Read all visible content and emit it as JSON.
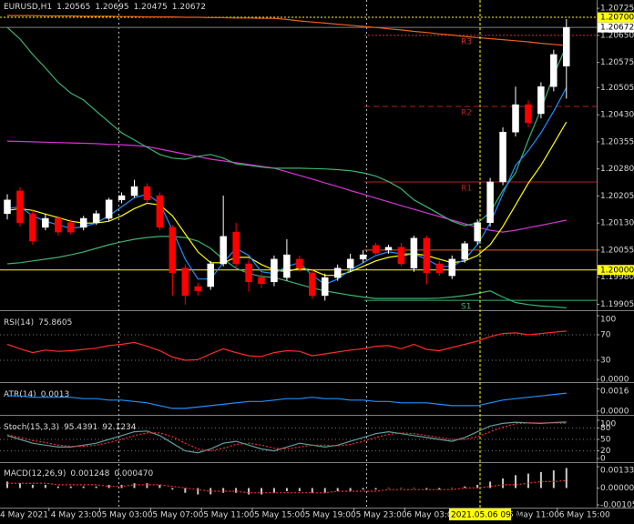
{
  "chart_data": [
    {
      "type": "candlestick",
      "title": "EURUSD,H1",
      "categories": [
        "4 May 2021",
        null,
        null,
        null,
        "4 May 23:00",
        null,
        null,
        null,
        "5 May 03:00",
        null,
        null,
        null,
        "5 May 07:00",
        null,
        null,
        null,
        "5 May 11:00",
        null,
        null,
        null,
        "5 May 15:00",
        null,
        null,
        null,
        "5 May 19:00",
        null,
        null,
        null,
        "5 May 23:00",
        null,
        null,
        null,
        "6 May 03:00",
        null,
        null,
        null,
        null,
        null,
        null,
        null,
        "6 May 11:00",
        null,
        null,
        null,
        "6 May 15:00"
      ],
      "open": [
        1.20156,
        1.20219,
        1.20156,
        1.20118,
        1.20143,
        1.20131,
        1.20118,
        1.20131,
        1.20143,
        1.20194,
        1.20206,
        1.20231,
        1.20206,
        1.20118,
        1.20005,
        1.19954,
        1.19954,
        1.20017,
        1.20105,
        1.20017,
        1.19979,
        1.19967,
        1.19979,
        1.2003,
        1.19992,
        1.19929,
        1.19979,
        1.20005,
        1.2003,
        1.20068,
        1.20055,
        1.20063,
        1.20005,
        1.20088,
        1.20017,
        1.19984,
        1.2003,
        1.2008,
        1.20131,
        1.20244,
        1.20382,
        1.20458,
        1.20433,
        1.20508,
        1.20565
      ],
      "high": [
        1.2021,
        1.2023,
        1.20165,
        1.20155,
        1.2015,
        1.2014,
        1.2015,
        1.20165,
        1.202,
        1.20215,
        1.2025,
        1.2024,
        1.20215,
        1.20125,
        1.20015,
        1.19965,
        1.20025,
        1.20206,
        1.2013,
        1.2003,
        1.1999,
        1.2004,
        1.20085,
        1.2004,
        1.2,
        1.1999,
        1.20015,
        1.20045,
        1.20055,
        1.20075,
        1.2007,
        1.20075,
        1.20095,
        1.20095,
        1.20025,
        1.2004,
        1.2008,
        1.2014,
        1.20255,
        1.20395,
        1.20508,
        1.2047,
        1.2052,
        1.2061,
        1.20695
      ],
      "low": [
        1.2014,
        1.2012,
        1.2007,
        1.2011,
        1.20095,
        1.20098,
        1.2011,
        1.20125,
        1.20135,
        1.20185,
        1.202,
        1.20185,
        1.2011,
        1.19929,
        1.19904,
        1.19929,
        1.19945,
        1.2001,
        1.20005,
        1.1994,
        1.1995,
        1.19955,
        1.1997,
        1.19995,
        1.1992,
        1.19915,
        1.1997,
        1.19995,
        1.2002,
        1.2004,
        1.20045,
        1.2001,
        1.19995,
        1.1996,
        1.19984,
        1.19975,
        1.2002,
        1.2007,
        1.2012,
        1.20235,
        1.2037,
        1.20395,
        1.2042,
        1.20495,
        1.20475
      ],
      "close": [
        1.20194,
        1.20131,
        1.2008,
        1.20143,
        1.20105,
        1.20105,
        1.20143,
        1.20156,
        1.20194,
        1.20206,
        1.20231,
        1.20194,
        1.20118,
        1.19992,
        1.19929,
        1.19942,
        1.20017,
        1.20093,
        1.20017,
        1.19967,
        1.19962,
        1.2003,
        1.20042,
        1.20005,
        1.19929,
        1.19979,
        1.20005,
        1.2003,
        1.20042,
        1.20047,
        1.20063,
        1.20017,
        1.20088,
        1.19992,
        1.19992,
        1.2003,
        1.20073,
        1.20131,
        1.20244,
        1.20382,
        1.20458,
        1.20408,
        1.20508,
        1.20597,
        1.20672
      ],
      "up_color": "#ffffff",
      "down_color": "#ff0000",
      "series": [
        {
          "color": "#e8601c",
          "values": [
            1.20705,
            1.20705,
            1.20705,
            1.20704,
            1.20704,
            1.20704,
            1.20703,
            1.20703,
            1.20703,
            1.20702,
            1.20702,
            1.20701,
            1.20701,
            1.20701,
            1.207,
            1.207,
            1.20699,
            1.20699,
            1.20698,
            1.20698,
            1.20697,
            1.20697,
            1.20694,
            1.2069,
            1.20687,
            1.20684,
            1.20681,
            1.20678,
            1.20675,
            1.20672,
            1.20668,
            1.20665,
            1.20661,
            1.20658,
            1.20654,
            1.20651,
            1.20647,
            1.20644,
            1.20641,
            1.20638,
            1.20635,
            1.20632,
            1.20628,
            1.20625,
            1.20622
          ]
        },
        {
          "color": "#d633d6",
          "values": [
            1.20357,
            1.20356,
            1.20355,
            1.20354,
            1.20353,
            1.20352,
            1.20351,
            1.2035,
            1.20348,
            1.20347,
            1.20345,
            1.20342,
            1.20335,
            1.20328,
            1.20321,
            1.20314,
            1.20307,
            1.20302,
            1.20297,
            1.20292,
            1.20287,
            1.20282,
            1.20272,
            1.20262,
            1.20252,
            1.20241,
            1.20231,
            1.2022,
            1.2021,
            1.20199,
            1.20189,
            1.20178,
            1.20168,
            1.20158,
            1.20148,
            1.20138,
            1.20128,
            1.20118,
            1.2011,
            1.20105,
            1.2011,
            1.20117,
            1.20124,
            1.20131,
            1.20138
          ]
        },
        {
          "color": "#3cb371",
          "values": [
            1.20672,
            1.2064,
            1.20597,
            1.2056,
            1.2052,
            1.2049,
            1.20471,
            1.2044,
            1.2041,
            1.2038,
            1.2036,
            1.2034,
            1.2032,
            1.2031,
            1.20307,
            1.20315,
            1.2032,
            1.2031,
            1.20294,
            1.2029,
            1.20285,
            1.20282,
            1.20282,
            1.20282,
            1.20281,
            1.2028,
            1.20278,
            1.20275,
            1.20269,
            1.2026,
            1.20245,
            1.20225,
            1.20194,
            1.20175,
            1.20155,
            1.20135,
            1.20123,
            1.2013,
            1.2016,
            1.2022,
            1.20269,
            1.2036,
            1.20445,
            1.2054,
            1.20622
          ]
        },
        {
          "color": "#3cb371",
          "values": [
            1.20017,
            1.2002,
            1.20025,
            1.2003,
            1.20035,
            1.20042,
            1.2005,
            1.2006,
            1.2007,
            1.20078,
            1.20085,
            1.2009,
            1.20093,
            1.20093,
            1.2009,
            1.2008,
            1.2006,
            1.2003,
            1.20005,
            1.1999,
            1.19982,
            1.19979,
            1.1997,
            1.1996,
            1.1995,
            1.19942,
            1.19936,
            1.1993,
            1.19925,
            1.19921,
            1.19921,
            1.19921,
            1.19921,
            1.19921,
            1.19922,
            1.19925,
            1.19929,
            1.19935,
            1.19942,
            1.19925,
            1.1991,
            1.19904,
            1.199,
            1.19898,
            1.19895
          ]
        },
        {
          "color": "#ffff00",
          "values": [
            1.20165,
            1.2017,
            1.20165,
            1.20155,
            1.20145,
            1.20135,
            1.2013,
            1.2013,
            1.20135,
            1.2015,
            1.2017,
            1.20185,
            1.2018,
            1.2015,
            1.201,
            1.2005,
            1.2002,
            1.2002,
            1.20035,
            1.20035,
            1.20015,
            1.2,
            1.19995,
            1.20005,
            1.2,
            1.19985,
            1.19985,
            1.19995,
            1.2001,
            1.20025,
            1.20035,
            1.2004,
            1.20045,
            1.2004,
            1.2003,
            1.2002,
            1.20025,
            1.2004,
            1.2007,
            1.2012,
            1.2018,
            1.2024,
            1.2029,
            1.2035,
            1.2041
          ]
        },
        {
          "color": "#1e90ff",
          "values": [
            1.2017,
            1.20175,
            1.2015,
            1.20135,
            1.20125,
            1.20115,
            1.2012,
            1.2013,
            1.2015,
            1.20175,
            1.202,
            1.2021,
            1.20185,
            1.2011,
            1.2003,
            1.19975,
            1.19975,
            1.2002,
            1.2006,
            1.2004,
            1.19995,
            1.1999,
            1.2001,
            1.2002,
            1.19985,
            1.1996,
            1.19975,
            1.2,
            1.2002,
            1.2004,
            1.2005,
            1.20045,
            1.20045,
            1.2003,
            1.2001,
            1.2001,
            1.2003,
            1.2007,
            1.2013,
            1.2021,
            1.2029,
            1.2033,
            1.2038,
            1.2044,
            1.20505
          ]
        }
      ],
      "pivots": [
        {
          "name": "R3",
          "value": 1.2065,
          "color": "#cc3333",
          "style": "dotted"
        },
        {
          "name": "R2",
          "value": 1.20453,
          "color": "#b22222",
          "style": "dashed"
        },
        {
          "name": "R1",
          "value": 1.20244,
          "color": "#b22222",
          "style": "solid"
        },
        {
          "value": 1.20055,
          "color": "#e8601c",
          "style": "solid"
        },
        {
          "name": "S1",
          "value": 1.19916,
          "color": "#3cb371",
          "style": "solid"
        }
      ],
      "markers": [
        {
          "value": 1.207,
          "label": "1.20700",
          "color": "#ffff00",
          "line_color": "#ffff00",
          "style": "dotted"
        },
        {
          "value": 1.20672,
          "label": "1.20672",
          "color": "#ffffff",
          "line_color": "#808080",
          "style": "solid"
        },
        {
          "value": 1.2,
          "label": "1.20000",
          "color": "#ffff00",
          "line_color": "#ffff00",
          "style": "solid"
        }
      ],
      "crosshair_label": "2021.05.06 09:00",
      "ylim": [
        1.19891,
        1.20748
      ],
      "yticks": [
        1.20725,
        {
          "value": 1.2065,
          "label": "1.20650"
        },
        1.20575,
        1.20505,
        {
          "value": 1.2043,
          "label": "1.20430"
        },
        1.20355,
        {
          "value": 1.2028,
          "label": "1.20280"
        },
        1.20205,
        {
          "value": 1.2013,
          "label": "1.20130"
        },
        1.20055,
        {
          "value": 1.1998,
          "label": "1.19980"
        },
        1.19905
      ],
      "grid": false
    },
    {
      "type": "line",
      "title": "RSI(14)",
      "series": [
        {
          "color": "#ff2a2a",
          "values": [
            55,
            48,
            42,
            46,
            44,
            45,
            47,
            49,
            53,
            55,
            58,
            52,
            45,
            35,
            30,
            31,
            40,
            48,
            42,
            37,
            36,
            42,
            45,
            44,
            37,
            40,
            43,
            46,
            48,
            52,
            53,
            48,
            55,
            47,
            45,
            50,
            55,
            60,
            67,
            72,
            73,
            70,
            72,
            74,
            75.8605
          ]
        }
      ],
      "ylim": [
        0,
        100
      ],
      "yticks": [
        100,
        70,
        30,
        {
          "value": 0,
          "label": "0.0000"
        }
      ],
      "grid": true
    },
    {
      "type": "line",
      "title": "ATR(14)",
      "series": [
        {
          "color": "#1e90ff",
          "values": [
            0.0011,
            0.0011,
            0.001,
            0.001,
            0.001,
            0.001,
            0.0009,
            0.0009,
            0.0008,
            0.0008,
            0.0007,
            0.0006,
            0.0004,
            0.0002,
            0.0002,
            0.0003,
            0.0004,
            0.0005,
            0.0006,
            0.0007,
            0.0007,
            0.0008,
            0.0009,
            0.0009,
            0.001,
            0.0009,
            0.0009,
            0.0008,
            0.0008,
            0.0007,
            0.0007,
            0.0006,
            0.0006,
            0.0006,
            0.0005,
            0.0004,
            0.0004,
            0.0004,
            0.0006,
            0.0008,
            0.0009,
            0.001,
            0.0011,
            0.0012,
            0.0013
          ]
        }
      ],
      "ylim": [
        0,
        0.0017
      ],
      "yticks": [
        0.0016,
        {
          "value": 0,
          "label": "0.0000"
        }
      ],
      "grid": false
    },
    {
      "type": "line",
      "title": "Stoch(15,3,3)",
      "series": [
        {
          "color": "#5f9ea0",
          "values": [
            60,
            50,
            40,
            35,
            30,
            30,
            35,
            40,
            50,
            60,
            70,
            72,
            60,
            40,
            20,
            15,
            25,
            40,
            45,
            35,
            25,
            20,
            30,
            40,
            35,
            30,
            35,
            45,
            55,
            65,
            70,
            65,
            60,
            55,
            50,
            45,
            55,
            70,
            85,
            92,
            95,
            93,
            92,
            94,
            95.4391
          ]
        },
        {
          "color": "#ff2a2a",
          "dash": true,
          "values": [
            62,
            55,
            47,
            42,
            35,
            32,
            32,
            35,
            42,
            50,
            60,
            67,
            67,
            57,
            40,
            25,
            20,
            27,
            37,
            40,
            35,
            27,
            25,
            30,
            35,
            35,
            33,
            37,
            45,
            55,
            63,
            67,
            65,
            60,
            55,
            50,
            50,
            57,
            70,
            82,
            91,
            93,
            93,
            93,
            92.1234
          ]
        }
      ],
      "ylim": [
        0,
        100
      ],
      "yticks": [
        100,
        80,
        50,
        20,
        0
      ],
      "grid": true
    },
    {
      "type": "bar",
      "title": "MACD(12,26,9)",
      "color": "#c8c8c8",
      "values": [
        0.0004,
        0.0003,
        0.0002,
        0.0002,
        0.0001,
        0.0001,
        0.0001,
        0.0001,
        0.0002,
        0.0002,
        0.0003,
        0.0003,
        0.0002,
        -0.0001,
        -0.0003,
        -0.0004,
        -0.0004,
        -0.0003,
        -0.0003,
        -0.0004,
        -0.0004,
        -0.0003,
        -0.0002,
        -0.0002,
        -0.0003,
        -0.0003,
        -0.0002,
        -0.0002,
        -0.0001,
        -0.0001,
        0,
        0,
        0,
        -0.0001,
        -0.0001,
        0,
        0.0001,
        0.0002,
        0.0004,
        0.0006,
        0.0008,
        0.0009,
        0.001,
        0.0011,
        0.001248
      ],
      "series": [
        {
          "color": "#ff2a2a",
          "dash": true,
          "values": [
            0.0003,
            0.0003,
            0.0003,
            0.0003,
            0.0002,
            0.0002,
            0.0002,
            0.0002,
            0.0001,
            0.0001,
            0.0002,
            0.0002,
            0.0002,
            0.0001,
            0,
            -0.0001,
            -0.0002,
            -0.0002,
            -0.0002,
            -0.0003,
            -0.0003,
            -0.0003,
            -0.0003,
            -0.0003,
            -0.0003,
            -0.0003,
            -0.0002,
            -0.0002,
            -0.0002,
            -0.0002,
            -0.0001,
            -0.0001,
            -0.0001,
            -0.0001,
            -0.0001,
            -0.0001,
            0,
            0,
            0.0001,
            0.0002,
            0.0002,
            0.0003,
            0.0004,
            0.0004,
            0.00047
          ],
          "value_labels": [
            null,
            null,
            null,
            null,
            null,
            null,
            null,
            null,
            null,
            null,
            null,
            null,
            null,
            null,
            null,
            null,
            null,
            null,
            null,
            null,
            null,
            null,
            null,
            null,
            null,
            null,
            null,
            null,
            null,
            null,
            null,
            null,
            null,
            null,
            null,
            null,
            null,
            null,
            null,
            null,
            null,
            null,
            null,
            null,
            "0.000470"
          ]
        }
      ],
      "ylim": [
        -0.001054,
        0.001332
      ],
      "yticks": [
        0.001332,
        {
          "value": 0,
          "label": "0.000000"
        },
        -0.001054
      ],
      "grid": false
    }
  ]
}
